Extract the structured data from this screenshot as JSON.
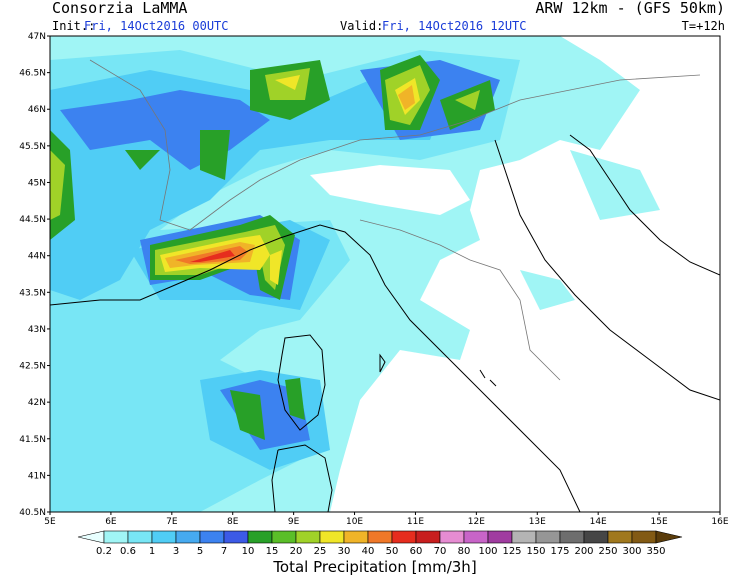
{
  "header": {
    "title": "Consorzia LaMMA",
    "model": "ARW 12km - (GFS 50km)",
    "init_label": "Init.:",
    "init_value": "Fri, 14Oct2016 00UTC",
    "valid_label": "Valid:",
    "valid_value": "Fri, 14Oct2016 12UTC",
    "lead_time": "T=+12h"
  },
  "map": {
    "lat_labels": [
      "47N",
      "46.5N",
      "46N",
      "45.5N",
      "45N",
      "44.5N",
      "44N",
      "43.5N",
      "43N",
      "42.5N",
      "42N",
      "41.5N",
      "41N",
      "40.5N"
    ],
    "lon_labels": [
      "5E",
      "6E",
      "7E",
      "8E",
      "9E",
      "10E",
      "11E",
      "12E",
      "13E",
      "14E",
      "15E",
      "16E"
    ]
  },
  "colorbar": {
    "title": "Total Precipitation [mm/3h]",
    "levels": [
      0.2,
      0.6,
      1,
      3,
      5,
      7,
      10,
      15,
      20,
      25,
      30,
      40,
      50,
      60,
      70,
      80,
      100,
      125,
      150,
      175,
      200,
      250,
      300,
      350
    ],
    "colors": [
      "#e8ffff",
      "#a0f5f5",
      "#78e6f5",
      "#50cdf5",
      "#46aaf0",
      "#3c82f0",
      "#3c5ae6",
      "#28a028",
      "#5abe28",
      "#a0d228",
      "#f0e628",
      "#f0b428",
      "#f07828",
      "#e62d1e",
      "#c81e1e",
      "#e68cd2",
      "#c864c8",
      "#a03ca0",
      "#b4b4b4",
      "#969696",
      "#6e6e6e",
      "#464646",
      "#a0781e",
      "#825a14",
      "#5a3c0a"
    ]
  }
}
